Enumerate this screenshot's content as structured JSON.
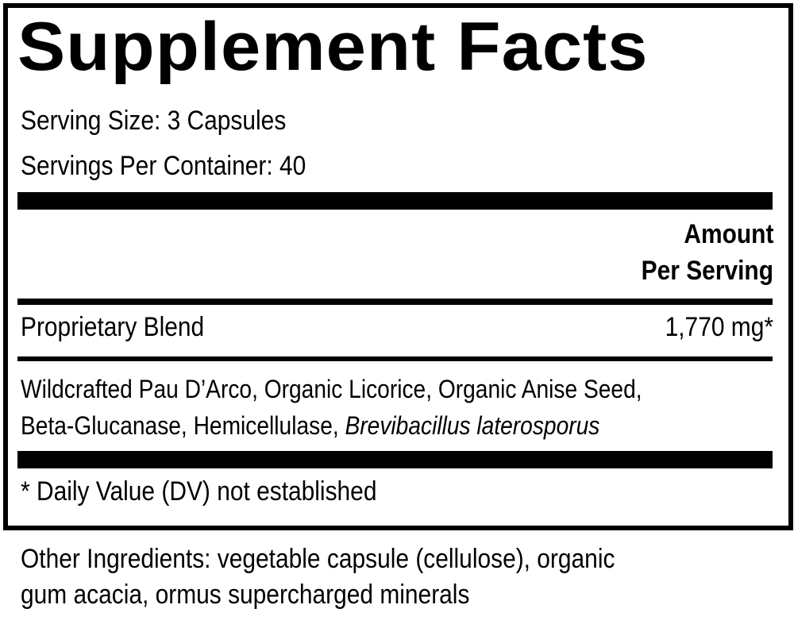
{
  "title": "Supplement Facts",
  "serving_size": "Serving Size: 3 Capsules",
  "servings_per_container": "Servings Per Container: 40",
  "amount_header_1": "Amount",
  "amount_header_2": "Per Serving",
  "blend": {
    "name": "Proprietary Blend",
    "amount": "1,770 mg*"
  },
  "ingredients_line1": "Wildcrafted Pau D’Arco, Organic Licorice, Organic Anise Seed,",
  "ingredients_line2": "Beta-Glucanase, Hemicellulase, ",
  "ingredients_italic": "Brevibacillus laterosporus",
  "footnote": "* Daily Value (DV) not established",
  "other_line1": "Other Ingredients: vegetable capsule (cellulose), organic",
  "other_line2": "gum acacia, ormus supercharged minerals"
}
